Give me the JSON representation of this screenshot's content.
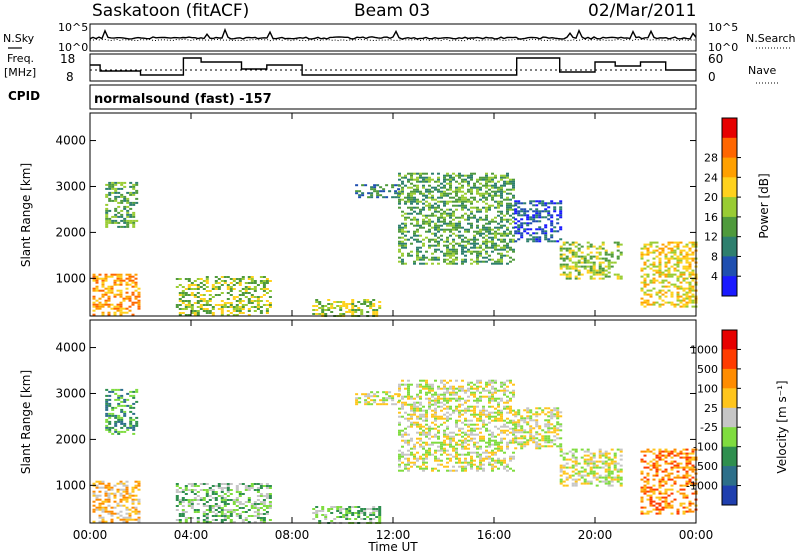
{
  "header": {
    "title": "Saskatoon (fitACF)",
    "beam": "Beam 03",
    "date": "02/Mar/2011"
  },
  "noise_panel": {
    "left_label": "N.Sky",
    "right_label": "N.Search",
    "tick_top_left": "10^5",
    "tick_bottom_left": "10^0",
    "tick_top_right": "10^5",
    "tick_bottom_right": "10^0"
  },
  "freq_panel": {
    "left_label_line1": "Freq.",
    "left_label_line2": "[MHz]",
    "tick_top_left": "18",
    "tick_bottom_left": "8",
    "right_label": "Nave",
    "tick_top_right": "60",
    "tick_bottom_right": "0"
  },
  "cpid": {
    "label": "CPID",
    "program": "normalsound (fast) -157"
  },
  "x_axis": {
    "label": "Time UT",
    "ticks": [
      "00:00",
      "04:00",
      "08:00",
      "12:00",
      "16:00",
      "20:00",
      "00:00"
    ]
  },
  "chart_data": [
    {
      "type": "heatmap",
      "name": "power",
      "ylabel": "Slant Range [km]",
      "yticks": [
        "1000",
        "2000",
        "3000",
        "4000"
      ],
      "ylim": [
        180,
        4600
      ],
      "xlim": [
        0,
        24
      ],
      "colorbar_label": "Power [dB]",
      "colorbar_ticks": [
        "4",
        "8",
        "12",
        "16",
        "20",
        "24",
        "28"
      ],
      "colorbar_colors": [
        "#1a1aff",
        "#1f4fb0",
        "#2e7f6e",
        "#4f9a3c",
        "#99cc33",
        "#ffd21e",
        "#ffa000",
        "#ff6600",
        "#e60000"
      ],
      "echo_regions": [
        {
          "t": [
            0.1,
            2.0
          ],
          "r": [
            200,
            1100
          ],
          "level": 6
        },
        {
          "t": [
            0.6,
            1.8
          ],
          "r": [
            2100,
            3100
          ],
          "level": 3
        },
        {
          "t": [
            3.4,
            7.2
          ],
          "r": [
            200,
            1050
          ],
          "level": 4
        },
        {
          "t": [
            8.8,
            11.5
          ],
          "r": [
            200,
            550
          ],
          "level": 4
        },
        {
          "t": [
            10.5,
            12.2
          ],
          "r": [
            2750,
            3050
          ],
          "level": 2
        },
        {
          "t": [
            12.2,
            16.8
          ],
          "r": [
            1300,
            3300
          ],
          "level": 3
        },
        {
          "t": [
            16.8,
            18.6
          ],
          "r": [
            1800,
            2700
          ],
          "level": 1
        },
        {
          "t": [
            18.6,
            21.0
          ],
          "r": [
            1000,
            1800
          ],
          "level": 4
        },
        {
          "t": [
            21.8,
            24.0
          ],
          "r": [
            400,
            1800
          ],
          "level": 5
        }
      ]
    },
    {
      "type": "heatmap",
      "name": "velocity",
      "ylabel": "Slant Range [km]",
      "yticks": [
        "1000",
        "2000",
        "3000",
        "4000"
      ],
      "ylim": [
        180,
        4600
      ],
      "xlim": [
        0,
        24
      ],
      "colorbar_label": "Velocity [m s⁻¹]",
      "colorbar_ticks": [
        "1000",
        "500",
        "100",
        "25",
        "-25",
        "-100",
        "-500",
        "-1000"
      ],
      "colorbar_colors": [
        "#1f3fae",
        "#2d6f8a",
        "#2f8f4f",
        "#7fdc3f",
        "#c6c6c6",
        "#ffc51c",
        "#ff8c00",
        "#ff3c00",
        "#e60000"
      ],
      "echo_regions": [
        {
          "t": [
            0.1,
            2.0
          ],
          "r": [
            200,
            1100
          ],
          "level": 5
        },
        {
          "t": [
            0.6,
            1.8
          ],
          "r": [
            2100,
            3100
          ],
          "level": 2
        },
        {
          "t": [
            3.4,
            7.2
          ],
          "r": [
            200,
            1050
          ],
          "level": 3
        },
        {
          "t": [
            8.8,
            11.5
          ],
          "r": [
            200,
            550
          ],
          "level": 3
        },
        {
          "t": [
            10.5,
            12.2
          ],
          "r": [
            2750,
            3050
          ],
          "level": 4
        },
        {
          "t": [
            12.2,
            16.8
          ],
          "r": [
            1300,
            3300
          ],
          "level": 4
        },
        {
          "t": [
            16.8,
            18.6
          ],
          "r": [
            1800,
            2700
          ],
          "level": 4
        },
        {
          "t": [
            18.6,
            21.0
          ],
          "r": [
            1000,
            1800
          ],
          "level": 4
        },
        {
          "t": [
            21.8,
            24.0
          ],
          "r": [
            400,
            1800
          ],
          "level": 6
        }
      ]
    }
  ]
}
